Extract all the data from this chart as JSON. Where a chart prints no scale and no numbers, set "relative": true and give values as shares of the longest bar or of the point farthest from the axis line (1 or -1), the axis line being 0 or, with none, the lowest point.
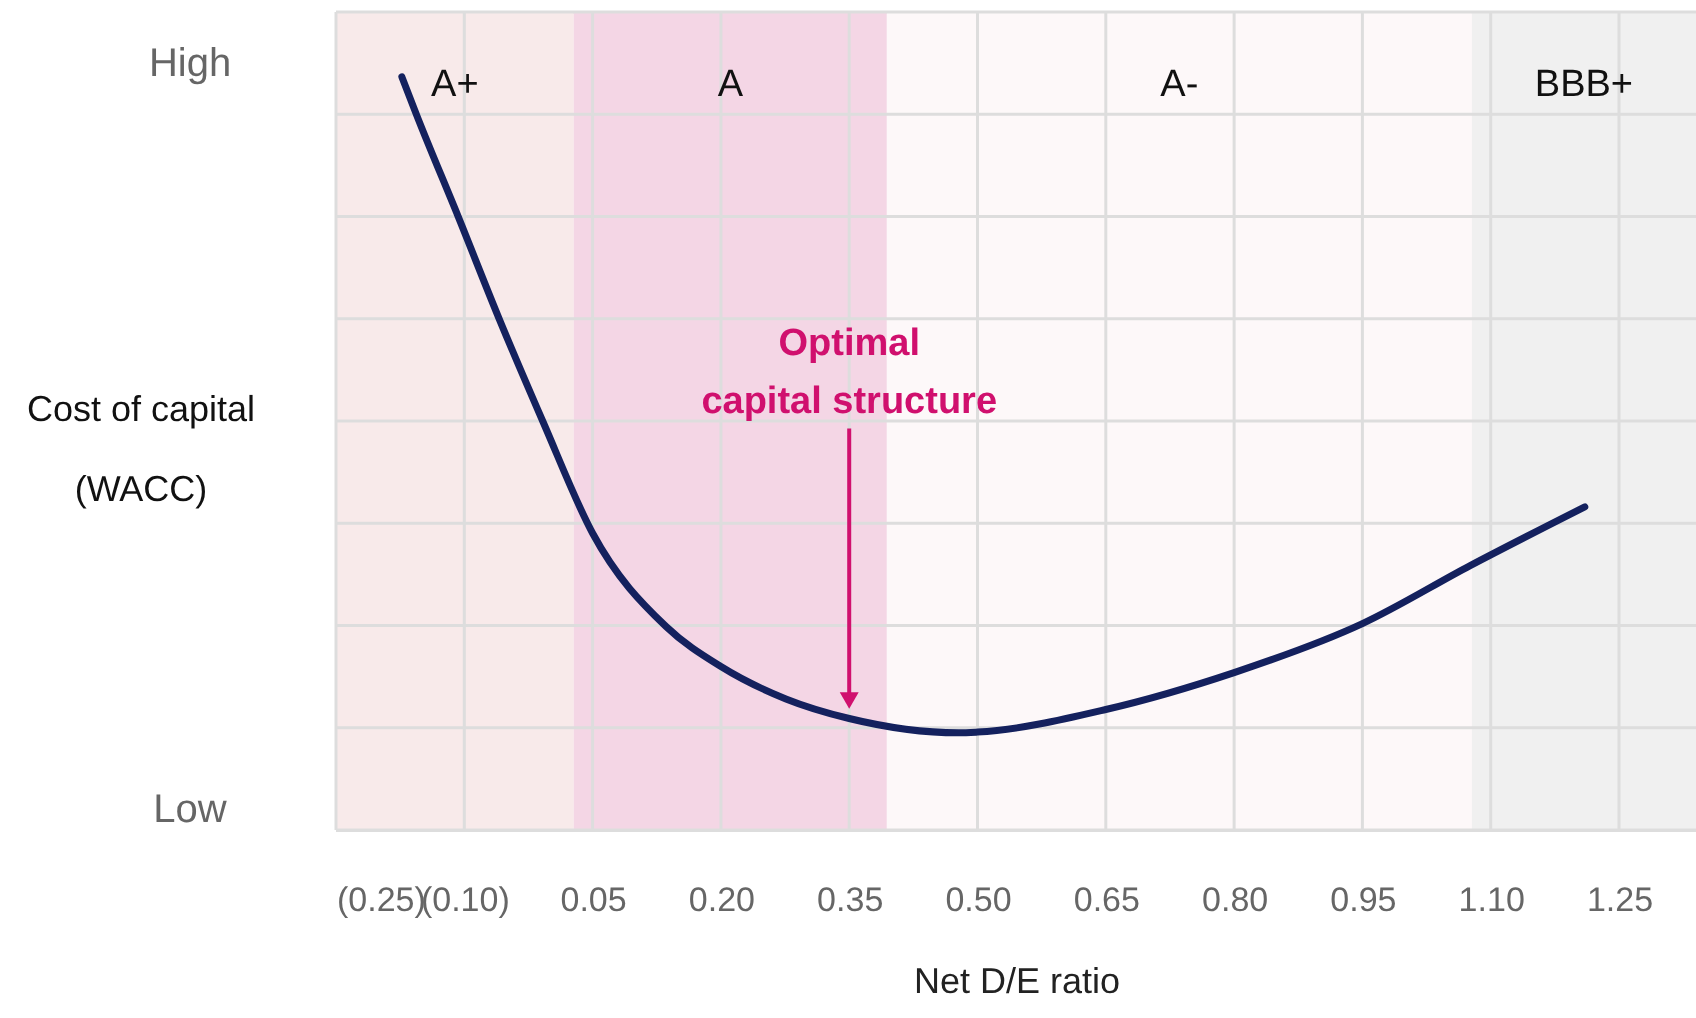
{
  "chart_data": {
    "type": "line",
    "xlabel": "Net D/E ratio",
    "ylabel": "Cost of capital\n(WACC)",
    "x": [
      -0.173,
      -0.156,
      -0.107,
      -0.059,
      -0.008,
      0.05,
      0.136,
      0.2,
      0.276,
      0.35,
      0.478,
      0.5,
      0.65,
      0.8,
      0.95,
      1.076,
      1.21
    ],
    "series": [
      {
        "color": "#14215e",
        "values": [
          1,
          0.95,
          0.814,
          0.678,
          0.542,
          0.394,
          0.27,
          0.217,
          0.174,
          0.148,
          0.129,
          0.13,
          0.16,
          0.209,
          0.274,
          0.351,
          0.429
        ]
      }
    ],
    "relative": true,
    "xlim": [
      -0.25,
      1.34
    ],
    "xticks": [
      {
        "value": -0.25,
        "label": "(0.25)"
      },
      {
        "value": -0.1,
        "label": "(0.10)"
      },
      {
        "value": 0.05,
        "label": "0.05"
      },
      {
        "value": 0.2,
        "label": "0.20"
      },
      {
        "value": 0.35,
        "label": "0.35"
      },
      {
        "value": 0.5,
        "label": "0.50"
      },
      {
        "value": 0.65,
        "label": "0.65"
      },
      {
        "value": 0.8,
        "label": "0.80"
      },
      {
        "value": 0.95,
        "label": "0.95"
      },
      {
        "value": 1.1,
        "label": "1.10"
      },
      {
        "value": 1.25,
        "label": "1.25"
      }
    ],
    "grid": true,
    "line_style": "solid",
    "marker": "none",
    "bands": [
      {
        "axis": "x",
        "from": -0.25,
        "to": 0.028,
        "label": "A+",
        "color": "#f8eaea"
      },
      {
        "axis": "x",
        "from": 0.028,
        "to": 0.394,
        "label": "A",
        "color": "#f4d6e5"
      },
      {
        "axis": "x",
        "from": 0.394,
        "to": 1.078,
        "label": "A-",
        "color": "#fdf8f9"
      },
      {
        "axis": "x",
        "from": 1.078,
        "to": 1.34,
        "label": "BBB+",
        "color": "#f0f0f0"
      }
    ],
    "annotations": [
      {
        "text": "Optimal\ncapital structure",
        "x": 0.35,
        "y": 0.148
      },
      "High",
      "Low"
    ]
  }
}
